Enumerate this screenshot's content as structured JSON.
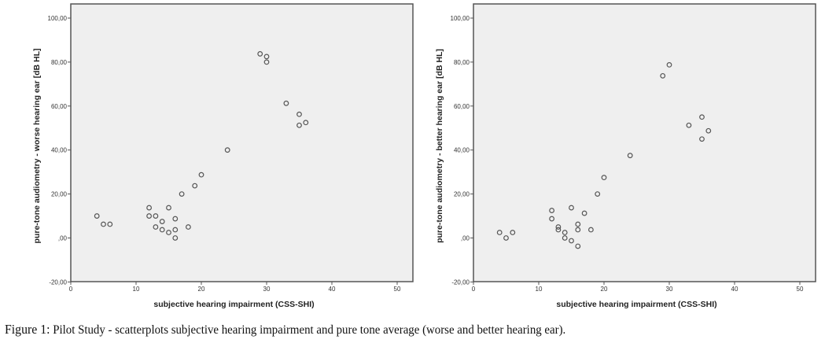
{
  "chart_data": [
    {
      "type": "scatter",
      "title": "",
      "xlabel": "subjective hearing impairment (CSS-SHI)",
      "ylabel": "pure-tone audiometry - worse hearing ear [dB HL]",
      "xlim": [
        0,
        52
      ],
      "ylim": [
        -20,
        106
      ],
      "grid": false,
      "x_ticks": [
        0,
        10,
        20,
        30,
        40,
        50
      ],
      "x_tick_labels": [
        "0",
        "10",
        "20",
        "30",
        "40",
        "50"
      ],
      "y_ticks": [
        -20,
        0,
        20,
        40,
        60,
        80,
        100
      ],
      "y_tick_labels": [
        "-20,00",
        ",00",
        "20,00",
        "40,00",
        "60,00",
        "80,00",
        "100,00"
      ],
      "points": [
        [
          4,
          10
        ],
        [
          5,
          6.25
        ],
        [
          6,
          6.25
        ],
        [
          12,
          13.75
        ],
        [
          12,
          10
        ],
        [
          13,
          10
        ],
        [
          13,
          5
        ],
        [
          14,
          7.5
        ],
        [
          14,
          3.75
        ],
        [
          15,
          13.75
        ],
        [
          15,
          2.5
        ],
        [
          16,
          8.75
        ],
        [
          16,
          3.75
        ],
        [
          16,
          0
        ],
        [
          17,
          20
        ],
        [
          18,
          5
        ],
        [
          19,
          23.75
        ],
        [
          20,
          28.75
        ],
        [
          24,
          40
        ],
        [
          29,
          83.75
        ],
        [
          30,
          82.5
        ],
        [
          30,
          80
        ],
        [
          33,
          61.25
        ],
        [
          35,
          56.25
        ],
        [
          35,
          51.25
        ],
        [
          36,
          52.5
        ]
      ]
    },
    {
      "type": "scatter",
      "title": "",
      "xlabel": "subjective hearing impairment (CSS-SHI)",
      "ylabel": "pure-tone audiometry - better hearing ear [dB HL]",
      "xlim": [
        0,
        52
      ],
      "ylim": [
        -20,
        106
      ],
      "grid": false,
      "x_ticks": [
        0,
        10,
        20,
        30,
        40,
        50
      ],
      "x_tick_labels": [
        "0",
        "10",
        "20",
        "30",
        "40",
        "50"
      ],
      "y_ticks": [
        -20,
        0,
        20,
        40,
        60,
        80,
        100
      ],
      "y_tick_labels": [
        "-20,00",
        ",00",
        "20,00",
        "40,00",
        "60,00",
        "80,00",
        "100,00"
      ],
      "points": [
        [
          4,
          2.5
        ],
        [
          5,
          0
        ],
        [
          6,
          2.5
        ],
        [
          12,
          12.5
        ],
        [
          12,
          8.75
        ],
        [
          13,
          5
        ],
        [
          13,
          3.75
        ],
        [
          14,
          2.5
        ],
        [
          14,
          0
        ],
        [
          15,
          13.75
        ],
        [
          15,
          -1.25
        ],
        [
          16,
          6.25
        ],
        [
          16,
          3.75
        ],
        [
          16,
          -3.75
        ],
        [
          17,
          11.25
        ],
        [
          18,
          3.75
        ],
        [
          19,
          20
        ],
        [
          20,
          27.5
        ],
        [
          24,
          37.5
        ],
        [
          29,
          73.75
        ],
        [
          30,
          78.75
        ],
        [
          33,
          51.25
        ],
        [
          35,
          55
        ],
        [
          35,
          45
        ],
        [
          36,
          48.75
        ]
      ]
    }
  ],
  "caption": {
    "label": "Figure 1:",
    "text": " Pilot Study - scatterplots subjective hearing impairment and pure tone average (worse and better hearing ear)."
  },
  "colors": {
    "plot_background": "#efefef",
    "frame": "#555555",
    "marker_stroke": "#555555"
  }
}
